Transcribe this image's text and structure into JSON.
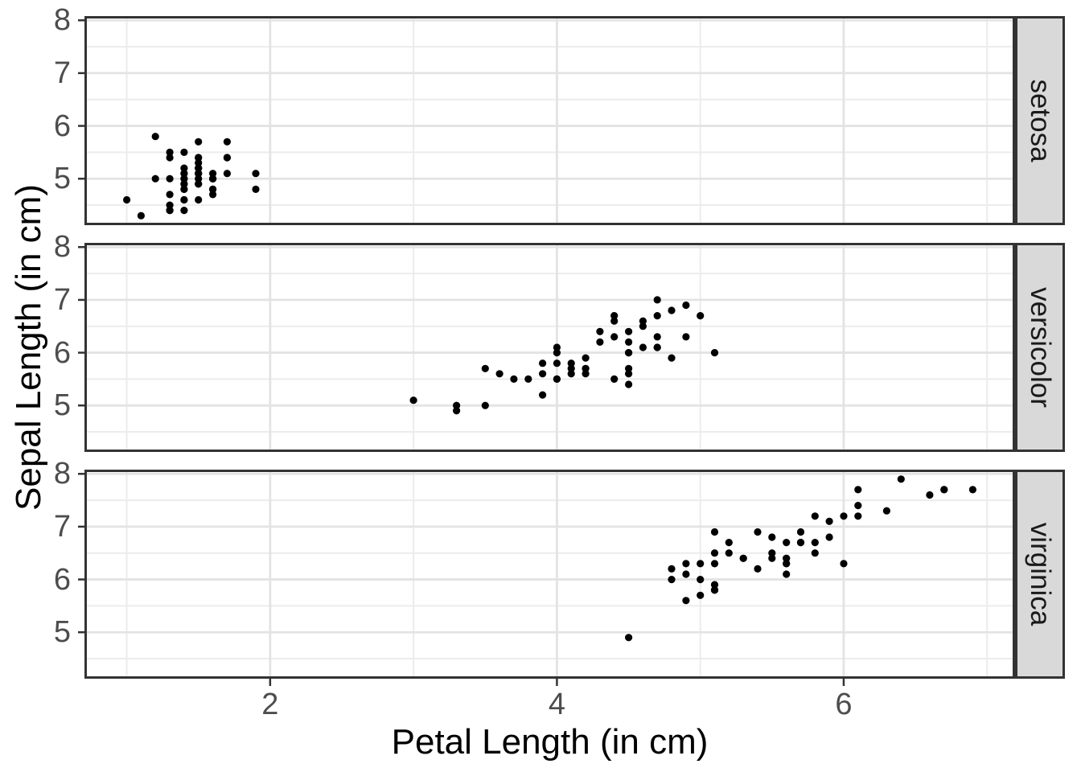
{
  "chart_data": {
    "type": "scatter",
    "title": "",
    "xlabel": "Petal Length (in cm)",
    "ylabel": "Sepal Length (in cm)",
    "facets": [
      "setosa",
      "versicolor",
      "virginica"
    ],
    "facet_position": "right-strips",
    "xlim": [
      0.705,
      7.195
    ],
    "ylim": [
      4.12,
      8.08
    ],
    "x_major_ticks": [
      2,
      4,
      6
    ],
    "x_minor_gridlines": [
      1,
      3,
      5,
      7
    ],
    "y_major_ticks": [
      5,
      6,
      7,
      8
    ],
    "y_minor_gridlines": [
      4.5,
      5.5,
      6.5,
      7.5
    ],
    "grid": "major+minor",
    "legend": "none",
    "series": [
      {
        "name": "setosa",
        "points": [
          [
            1.4,
            5.1
          ],
          [
            1.4,
            4.9
          ],
          [
            1.3,
            4.7
          ],
          [
            1.5,
            4.6
          ],
          [
            1.4,
            5.0
          ],
          [
            1.7,
            5.4
          ],
          [
            1.4,
            4.6
          ],
          [
            1.5,
            5.0
          ],
          [
            1.4,
            4.4
          ],
          [
            1.5,
            4.9
          ],
          [
            1.5,
            5.4
          ],
          [
            1.6,
            4.8
          ],
          [
            1.4,
            4.8
          ],
          [
            1.1,
            4.3
          ],
          [
            1.2,
            5.8
          ],
          [
            1.5,
            5.7
          ],
          [
            1.3,
            5.4
          ],
          [
            1.4,
            5.1
          ],
          [
            1.7,
            5.7
          ],
          [
            1.5,
            5.1
          ],
          [
            1.7,
            5.4
          ],
          [
            1.5,
            5.1
          ],
          [
            1.0,
            4.6
          ],
          [
            1.7,
            5.1
          ],
          [
            1.9,
            4.8
          ],
          [
            1.6,
            5.0
          ],
          [
            1.6,
            5.0
          ],
          [
            1.5,
            5.2
          ],
          [
            1.4,
            5.2
          ],
          [
            1.6,
            4.7
          ],
          [
            1.6,
            4.8
          ],
          [
            1.5,
            5.4
          ],
          [
            1.5,
            5.2
          ],
          [
            1.4,
            5.5
          ],
          [
            1.5,
            4.9
          ],
          [
            1.2,
            5.0
          ],
          [
            1.3,
            5.5
          ],
          [
            1.4,
            4.9
          ],
          [
            1.3,
            4.4
          ],
          [
            1.5,
            5.1
          ],
          [
            1.3,
            5.0
          ],
          [
            1.3,
            4.5
          ],
          [
            1.3,
            4.4
          ],
          [
            1.6,
            5.0
          ],
          [
            1.9,
            5.1
          ],
          [
            1.4,
            4.8
          ],
          [
            1.6,
            5.1
          ],
          [
            1.4,
            4.6
          ],
          [
            1.5,
            5.3
          ],
          [
            1.4,
            5.0
          ]
        ]
      },
      {
        "name": "versicolor",
        "points": [
          [
            4.7,
            7.0
          ],
          [
            4.5,
            6.4
          ],
          [
            4.9,
            6.9
          ],
          [
            4.0,
            5.5
          ],
          [
            4.6,
            6.5
          ],
          [
            4.5,
            5.7
          ],
          [
            4.7,
            6.3
          ],
          [
            3.3,
            4.9
          ],
          [
            4.6,
            6.6
          ],
          [
            3.9,
            5.2
          ],
          [
            3.5,
            5.0
          ],
          [
            4.2,
            5.9
          ],
          [
            4.0,
            6.0
          ],
          [
            4.7,
            6.1
          ],
          [
            3.6,
            5.6
          ],
          [
            4.4,
            6.7
          ],
          [
            4.5,
            5.6
          ],
          [
            4.1,
            5.8
          ],
          [
            4.5,
            6.2
          ],
          [
            3.9,
            5.6
          ],
          [
            4.8,
            5.9
          ],
          [
            4.0,
            6.1
          ],
          [
            4.9,
            6.3
          ],
          [
            4.7,
            6.1
          ],
          [
            4.3,
            6.4
          ],
          [
            4.4,
            6.6
          ],
          [
            4.8,
            6.8
          ],
          [
            5.0,
            6.7
          ],
          [
            4.5,
            6.0
          ],
          [
            3.5,
            5.7
          ],
          [
            3.8,
            5.5
          ],
          [
            3.7,
            5.5
          ],
          [
            3.9,
            5.8
          ],
          [
            5.1,
            6.0
          ],
          [
            4.5,
            5.4
          ],
          [
            4.5,
            6.0
          ],
          [
            4.7,
            6.7
          ],
          [
            4.4,
            6.3
          ],
          [
            4.1,
            5.6
          ],
          [
            4.0,
            5.5
          ],
          [
            4.4,
            5.5
          ],
          [
            4.6,
            6.1
          ],
          [
            4.0,
            5.8
          ],
          [
            3.3,
            5.0
          ],
          [
            4.2,
            5.6
          ],
          [
            4.2,
            5.7
          ],
          [
            4.2,
            5.7
          ],
          [
            4.3,
            6.2
          ],
          [
            3.0,
            5.1
          ],
          [
            4.1,
            5.7
          ]
        ]
      },
      {
        "name": "virginica",
        "points": [
          [
            6.0,
            6.3
          ],
          [
            5.1,
            5.8
          ],
          [
            5.9,
            7.1
          ],
          [
            5.6,
            6.3
          ],
          [
            5.8,
            6.5
          ],
          [
            6.6,
            7.6
          ],
          [
            4.5,
            4.9
          ],
          [
            6.3,
            7.3
          ],
          [
            5.8,
            6.7
          ],
          [
            6.1,
            7.2
          ],
          [
            5.1,
            6.5
          ],
          [
            5.3,
            6.4
          ],
          [
            5.5,
            6.8
          ],
          [
            5.0,
            5.7
          ],
          [
            5.1,
            5.8
          ],
          [
            5.3,
            6.4
          ],
          [
            5.5,
            6.5
          ],
          [
            6.7,
            7.7
          ],
          [
            6.9,
            7.7
          ],
          [
            5.0,
            6.0
          ],
          [
            5.7,
            6.9
          ],
          [
            4.9,
            5.6
          ],
          [
            6.7,
            7.7
          ],
          [
            4.9,
            6.3
          ],
          [
            5.7,
            6.7
          ],
          [
            6.0,
            7.2
          ],
          [
            4.8,
            6.2
          ],
          [
            4.9,
            6.1
          ],
          [
            5.6,
            6.4
          ],
          [
            5.8,
            7.2
          ],
          [
            6.1,
            7.4
          ],
          [
            6.4,
            7.9
          ],
          [
            5.6,
            6.4
          ],
          [
            5.1,
            6.3
          ],
          [
            5.6,
            6.1
          ],
          [
            6.1,
            7.7
          ],
          [
            5.6,
            6.3
          ],
          [
            5.5,
            6.4
          ],
          [
            4.8,
            6.0
          ],
          [
            5.4,
            6.9
          ],
          [
            5.6,
            6.7
          ],
          [
            5.1,
            6.9
          ],
          [
            5.1,
            5.8
          ],
          [
            5.9,
            6.8
          ],
          [
            5.7,
            6.7
          ],
          [
            5.2,
            6.7
          ],
          [
            5.0,
            6.3
          ],
          [
            5.2,
            6.5
          ],
          [
            5.4,
            6.2
          ],
          [
            5.1,
            5.9
          ]
        ]
      }
    ]
  },
  "style": {
    "point_color": "#000000",
    "panel_background": "#ffffff",
    "panel_border_color": "#333333",
    "strip_fill": "#d9d9d9",
    "strip_border_color": "#333333",
    "strip_text_color": "#1a1a1a",
    "grid_major_color": "#e3e3e3",
    "grid_minor_color": "#ececec",
    "tick_mark_color": "#333333",
    "tick_label_color": "#4d4d4d",
    "axis_title_color": "#000000"
  }
}
